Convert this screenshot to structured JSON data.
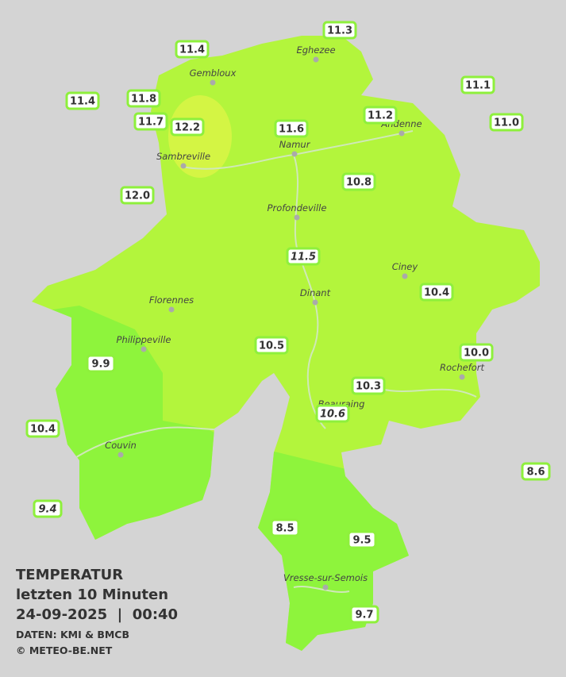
{
  "title": "TEMPERATUR",
  "subtitle": "letzten 10 Minuten",
  "timestamp": "24-09-2025  |  00:40",
  "source": "DATEN: KMI & BMCB",
  "copyright": "© METEO-BE.NET",
  "cities": [
    "Gembloux",
    "Eghezee",
    "Andenne",
    "Namur",
    "Sambreville",
    "Profondeville",
    "Ciney",
    "Dinant",
    "Florennes",
    "Philippeville",
    "Rochefort",
    "Beauraing",
    "Couvin",
    "Vresse-sur-Semois"
  ],
  "stations": [
    {
      "label": "11.3"
    },
    {
      "label": "11.4"
    },
    {
      "label": "11.1"
    },
    {
      "label": "11.4"
    },
    {
      "label": "11.8"
    },
    {
      "label": "11.2"
    },
    {
      "label": "11.0"
    },
    {
      "label": "11.7"
    },
    {
      "label": "12.2"
    },
    {
      "label": "11.6"
    },
    {
      "label": "10.8"
    },
    {
      "label": "12.0"
    },
    {
      "label": "11.5",
      "italic": true
    },
    {
      "label": "10.4"
    },
    {
      "label": "10.5"
    },
    {
      "label": "10.0"
    },
    {
      "label": "9.9"
    },
    {
      "label": "10.3"
    },
    {
      "label": "10.6",
      "italic": true
    },
    {
      "label": "10.4"
    },
    {
      "label": "8.6"
    },
    {
      "label": "9.4",
      "italic": true
    },
    {
      "label": "8.5"
    },
    {
      "label": "9.5"
    },
    {
      "label": "9.7"
    }
  ]
}
